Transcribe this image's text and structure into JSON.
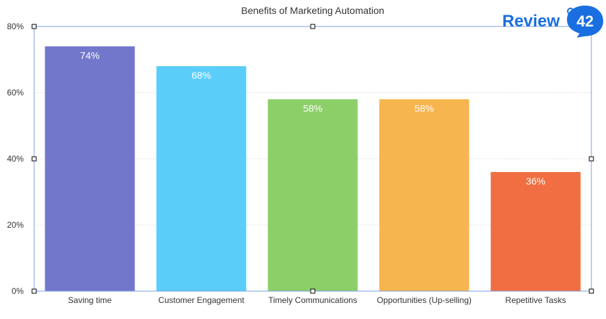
{
  "chart_data": {
    "type": "bar",
    "title": "Benefits of Marketing Automation",
    "categories": [
      "Saving time",
      "Customer Engagement",
      "Timely Communications",
      "Opportunities (Up-selling)",
      "Repetitive Tasks"
    ],
    "values": [
      74,
      68,
      58,
      58,
      36
    ],
    "data_labels": [
      "74%",
      "68%",
      "58%",
      "58%",
      "36%"
    ],
    "colors": [
      "#7277cc",
      "#5bcdf9",
      "#8ccf68",
      "#f6b54e",
      "#f06e42"
    ],
    "yticks": [
      "0%",
      "20%",
      "40%",
      "60%",
      "80%"
    ],
    "ylim": [
      0,
      80
    ],
    "grid": true,
    "xlabel": "",
    "ylabel": ""
  },
  "logo": {
    "text": "Review",
    "badge": "42",
    "color": "#1a6fe0"
  }
}
